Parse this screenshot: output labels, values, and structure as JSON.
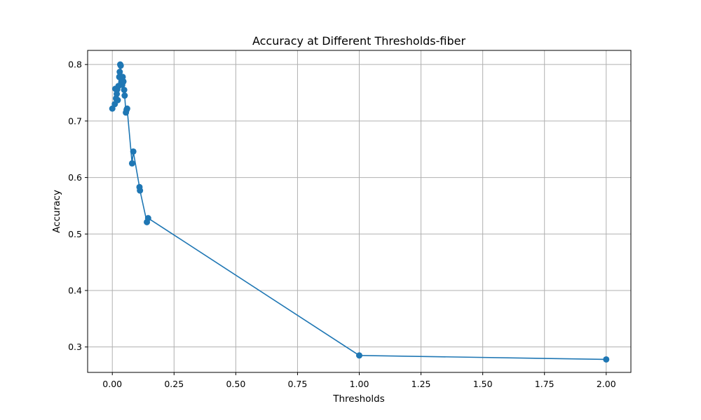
{
  "chart_data": {
    "type": "line",
    "title": "Accuracy at Different Thresholds-fiber",
    "xlabel": "Thresholds",
    "ylabel": "Accuracy",
    "xlim": [
      -0.1,
      2.1
    ],
    "ylim": [
      0.255,
      0.825
    ],
    "x_ticks": [
      0.0,
      0.25,
      0.5,
      0.75,
      1.0,
      1.25,
      1.5,
      1.75,
      2.0
    ],
    "x_tick_labels": [
      "0.00",
      "0.25",
      "0.50",
      "0.75",
      "1.00",
      "1.25",
      "1.50",
      "1.75",
      "2.00"
    ],
    "y_ticks": [
      0.3,
      0.4,
      0.5,
      0.6,
      0.7,
      0.8
    ],
    "y_tick_labels": [
      "0.3",
      "0.4",
      "0.5",
      "0.6",
      "0.7",
      "0.8"
    ],
    "grid": true,
    "line_color": "#1f77b4",
    "marker": "circle",
    "series": [
      {
        "x": [
          0.0,
          0.01,
          0.012,
          0.015,
          0.018,
          0.02,
          0.022,
          0.025,
          0.028,
          0.03,
          0.032,
          0.034,
          0.036,
          0.038,
          0.04,
          0.042,
          0.045,
          0.048,
          0.05,
          0.055,
          0.058,
          0.06,
          0.08,
          0.085,
          0.11,
          0.112,
          0.14,
          0.145,
          1.0,
          2.0
        ],
        "y": [
          0.722,
          0.73,
          0.757,
          0.74,
          0.748,
          0.756,
          0.737,
          0.762,
          0.778,
          0.787,
          0.8,
          0.798,
          0.776,
          0.77,
          0.764,
          0.778,
          0.77,
          0.755,
          0.745,
          0.715,
          0.72,
          0.722,
          0.625,
          0.646,
          0.583,
          0.577,
          0.521,
          0.528,
          0.285,
          0.278
        ]
      }
    ]
  }
}
